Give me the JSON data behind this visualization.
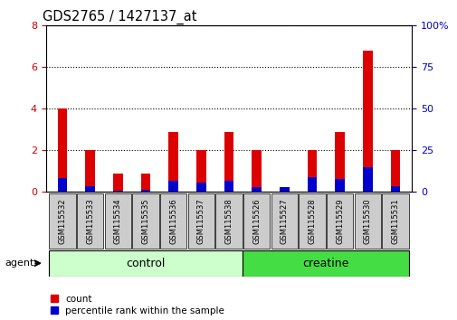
{
  "title": "GDS2765 / 1427137_at",
  "samples": [
    "GSM115532",
    "GSM115533",
    "GSM115534",
    "GSM115535",
    "GSM115536",
    "GSM115537",
    "GSM115538",
    "GSM115526",
    "GSM115527",
    "GSM115528",
    "GSM115529",
    "GSM115530",
    "GSM115531"
  ],
  "count_values": [
    4.0,
    2.0,
    0.9,
    0.9,
    2.9,
    2.0,
    2.9,
    2.0,
    0.15,
    2.0,
    2.9,
    6.8,
    2.0
  ],
  "percentile_values": [
    8.5,
    3.5,
    0.5,
    1.5,
    6.5,
    5.5,
    6.5,
    3.0,
    3.0,
    9.0,
    8.0,
    15.0,
    3.5
  ],
  "red_color": "#dd0000",
  "blue_color": "#0000cc",
  "bar_width": 0.35,
  "ylim_left": [
    0,
    8
  ],
  "ylim_right": [
    0,
    100
  ],
  "yticks_left": [
    0,
    2,
    4,
    6,
    8
  ],
  "yticks_right": [
    0,
    25,
    50,
    75,
    100
  ],
  "control_group_count": 7,
  "creatine_group_count": 6,
  "control_color": "#ccffcc",
  "creatine_color": "#44dd44",
  "group_label_control": "control",
  "group_label_creatine": "creatine",
  "agent_label": "agent",
  "legend_count": "count",
  "legend_percentile": "percentile rank within the sample",
  "tick_label_color_left": "#cc0000",
  "tick_label_color_right": "#0000cc",
  "xlabel_tick_bg": "#cccccc",
  "plot_bg": "#ffffff"
}
